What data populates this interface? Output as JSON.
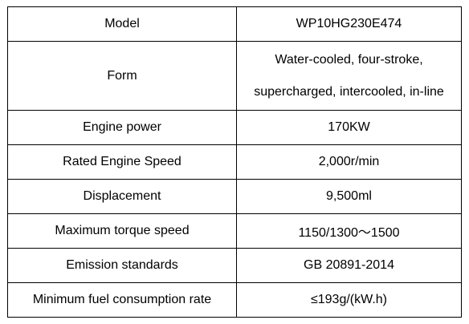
{
  "table": {
    "rows": [
      [
        "Model",
        "WP10HG230E474"
      ],
      [
        "Form",
        [
          "Water-cooled, four-stroke,",
          "supercharged, intercooled, in-line"
        ]
      ],
      [
        "Engine power",
        "170KW"
      ],
      [
        "Rated Engine Speed",
        "2,000r/min"
      ],
      [
        "Displacement",
        "9,500ml"
      ],
      [
        "Maximum torque speed",
        "1150/1300～1500"
      ],
      [
        "Emission standards",
        "GB 20891-2014"
      ],
      [
        "Minimum fuel consumption rate",
        "≤193g/(kW.h)"
      ]
    ]
  }
}
